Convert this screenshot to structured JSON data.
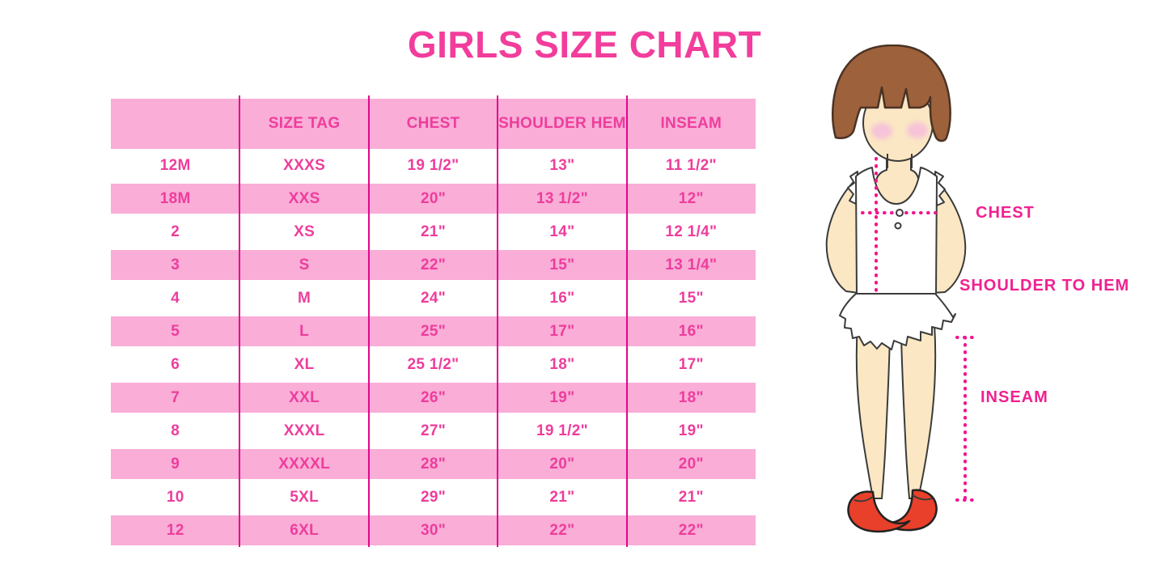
{
  "chart_data": {
    "type": "table",
    "title": "GIRLS SIZE CHART",
    "columns": [
      "",
      "SIZE TAG",
      "CHEST",
      "SHOULDER HEM",
      "INSEAM"
    ],
    "rows": [
      [
        "12M",
        "XXXS",
        "19 1/2\"",
        "13\"",
        "11 1/2\""
      ],
      [
        "18M",
        "XXS",
        "20\"",
        "13 1/2\"",
        "12\""
      ],
      [
        "2",
        "XS",
        "21\"",
        "14\"",
        "12 1/4\""
      ],
      [
        "3",
        "S",
        "22\"",
        "15\"",
        "13 1/4\""
      ],
      [
        "4",
        "M",
        "24\"",
        "16\"",
        "15\""
      ],
      [
        "5",
        "L",
        "25\"",
        "17\"",
        "16\""
      ],
      [
        "6",
        "XL",
        "25 1/2\"",
        "18\"",
        "17\""
      ],
      [
        "7",
        "XXL",
        "26\"",
        "19\"",
        "18\""
      ],
      [
        "8",
        "XXXL",
        "27\"",
        "19 1/2\"",
        "19\""
      ],
      [
        "9",
        "XXXXL",
        "28\"",
        "20\"",
        "20\""
      ],
      [
        "10",
        "5XL",
        "29\"",
        "21\"",
        "21\""
      ],
      [
        "12",
        "6XL",
        "30\"",
        "22\"",
        "22\""
      ]
    ]
  },
  "illustration": {
    "figure": "cartoon girl with brown bob haircut, white ruffled top and skirt, red mary-jane shoes",
    "labels": {
      "chest": "CHEST",
      "shoulder_to_hem": "SHOULDER TO HEM",
      "inseam": "INSEAM"
    }
  },
  "colors": {
    "title_pink": "#F23D9C",
    "table_text": "#EE3D9C",
    "row_pink": "#F9ADD7",
    "divider": "#E2068C",
    "label_pink": "#F0218F",
    "dotted": "#F2138F",
    "hair": "#9D613C",
    "skin": "#FBE7C3",
    "blush": "#F6C3D8",
    "shoe": "#E8402A",
    "outline": "#3B3B3B"
  }
}
